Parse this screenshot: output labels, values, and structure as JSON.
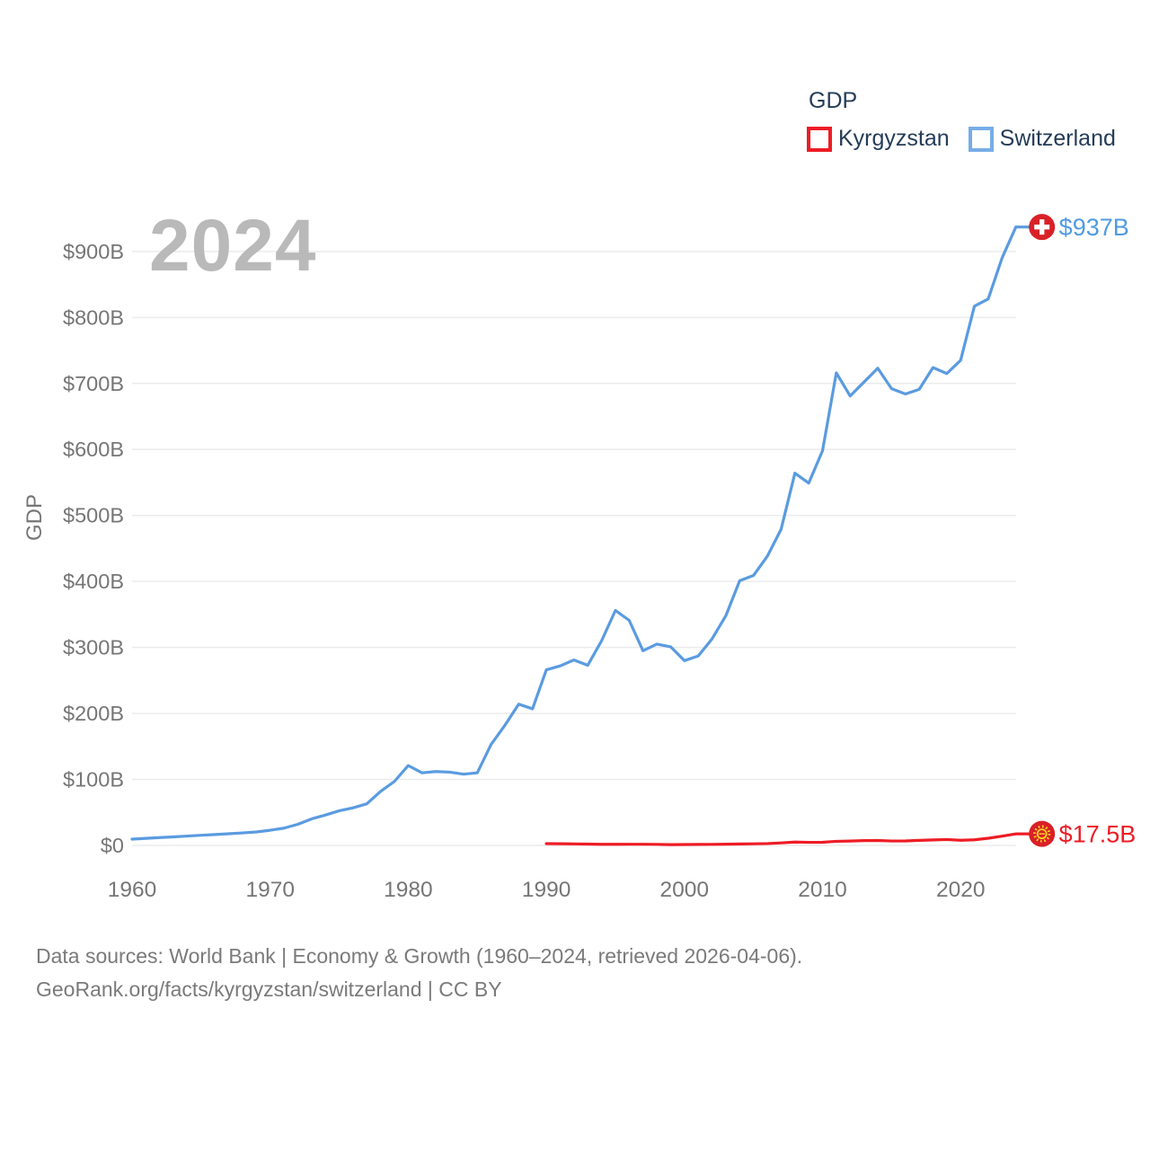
{
  "legend": {
    "title": "GDP",
    "items": [
      {
        "label": "Kyrgyzstan",
        "swatch_color": "#ee1c25"
      },
      {
        "label": "Switzerland",
        "swatch_color": "#77ade6"
      }
    ]
  },
  "watermark": "2024",
  "chart_data": {
    "type": "line",
    "title": "GDP",
    "ylabel": "GDP",
    "xlabel": "",
    "units": "billions of USD",
    "xlim": [
      1960,
      2024
    ],
    "ylim": [
      0,
      960
    ],
    "grid": "horizontal",
    "legend_position": "top-right",
    "x_ticks": [
      {
        "value": 1960,
        "label": "1960"
      },
      {
        "value": 1970,
        "label": "1970"
      },
      {
        "value": 1980,
        "label": "1980"
      },
      {
        "value": 1990,
        "label": "1990"
      },
      {
        "value": 2000,
        "label": "2000"
      },
      {
        "value": 2010,
        "label": "2010"
      },
      {
        "value": 2020,
        "label": "2020"
      }
    ],
    "y_ticks": [
      {
        "value": 0,
        "label": "$0"
      },
      {
        "value": 100,
        "label": "$100B"
      },
      {
        "value": 200,
        "label": "$200B"
      },
      {
        "value": 300,
        "label": "$300B"
      },
      {
        "value": 400,
        "label": "$400B"
      },
      {
        "value": 500,
        "label": "$500B"
      },
      {
        "value": 600,
        "label": "$600B"
      },
      {
        "value": 700,
        "label": "$700B"
      },
      {
        "value": 800,
        "label": "$800B"
      },
      {
        "value": 900,
        "label": "$900B"
      }
    ],
    "series": [
      {
        "name": "Switzerland",
        "color": "#5a9be0",
        "end_label": "$937B",
        "end_label_color": "#4f9be2",
        "end_marker": "switzerland-flag",
        "x": [
          1960,
          1961,
          1962,
          1963,
          1964,
          1965,
          1966,
          1967,
          1968,
          1969,
          1970,
          1971,
          1972,
          1973,
          1974,
          1975,
          1976,
          1977,
          1978,
          1979,
          1980,
          1981,
          1982,
          1983,
          1984,
          1985,
          1986,
          1987,
          1988,
          1989,
          1990,
          1991,
          1992,
          1993,
          1994,
          1995,
          1996,
          1997,
          1998,
          1999,
          2000,
          2001,
          2002,
          2003,
          2004,
          2005,
          2006,
          2007,
          2008,
          2009,
          2010,
          2011,
          2012,
          2013,
          2014,
          2015,
          2016,
          2017,
          2018,
          2019,
          2020,
          2021,
          2022,
          2023,
          2024
        ],
        "values": [
          9.5,
          10.7,
          11.9,
          12.9,
          14.2,
          15.4,
          16.5,
          17.7,
          19,
          20.4,
          23,
          26.2,
          32,
          40.2,
          46,
          52.5,
          57,
          63,
          82,
          97,
          121,
          110,
          112,
          111,
          108,
          110,
          153,
          182,
          214,
          207,
          266,
          272,
          281,
          273,
          310,
          356,
          341,
          295,
          305,
          301,
          280,
          287,
          313,
          348,
          401,
          409,
          438,
          479,
          564,
          549,
          598,
          716,
          681,
          702,
          723,
          692,
          684,
          691,
          724,
          715,
          735,
          817,
          828,
          890,
          937
        ]
      },
      {
        "name": "Kyrgyzstan",
        "color": "#ee1c25",
        "end_label": "$17.5B",
        "end_label_color": "#ee1c25",
        "end_marker": "kyrgyzstan-flag",
        "x": [
          1990,
          1991,
          1992,
          1993,
          1994,
          1995,
          1996,
          1997,
          1998,
          1999,
          2000,
          2001,
          2002,
          2003,
          2004,
          2005,
          2006,
          2007,
          2008,
          2009,
          2010,
          2011,
          2012,
          2013,
          2014,
          2015,
          2016,
          2017,
          2018,
          2019,
          2020,
          2021,
          2022,
          2023,
          2024
        ],
        "values": [
          2.7,
          2.6,
          2.3,
          2.0,
          1.7,
          1.7,
          1.8,
          1.8,
          1.6,
          1.2,
          1.4,
          1.5,
          1.6,
          1.9,
          2.2,
          2.5,
          2.8,
          3.8,
          5.1,
          4.7,
          4.8,
          6.2,
          6.6,
          7.3,
          7.5,
          6.7,
          6.8,
          7.7,
          8.3,
          8.9,
          7.8,
          8.5,
          10.9,
          14.0,
          17.5
        ]
      }
    ]
  },
  "footer": {
    "line1": "Data sources: World Bank | Economy & Growth (1960–2024, retrieved 2026-04-06).",
    "line2": "GeoRank.org/facts/kyrgyzstan/switzerland | CC BY"
  },
  "colors": {
    "axis_text": "#767676",
    "gridline": "#ebebeb",
    "watermark": "#b9b9b9",
    "footer_text": "#7a7a7a",
    "legend_text": "#253c57",
    "flag_dot_red": "#d92027",
    "kyrgyz_sun_yellow": "#ffd324"
  }
}
